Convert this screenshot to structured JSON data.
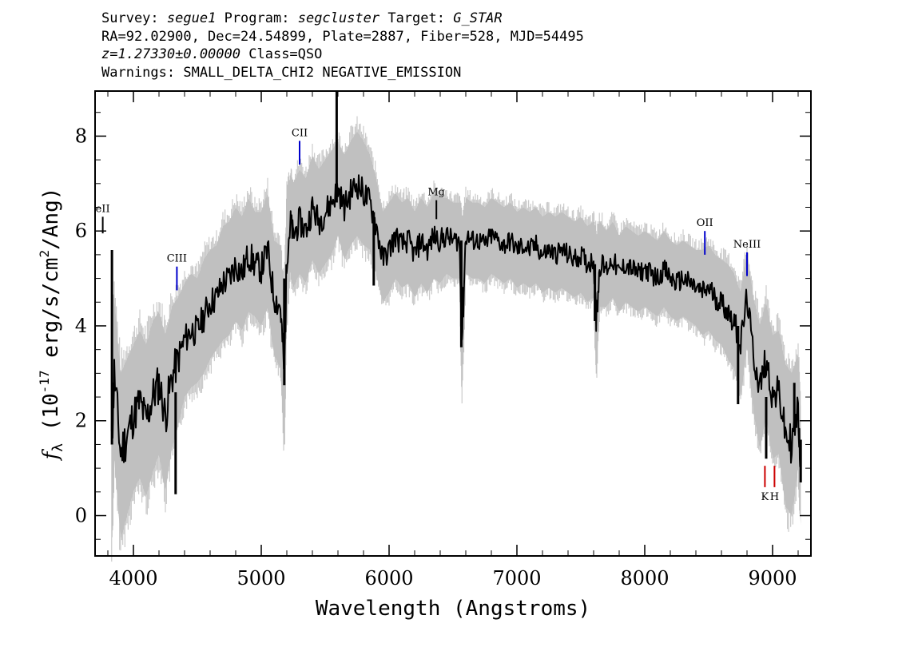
{
  "header": {
    "survey_label": "Survey:",
    "survey": "segue1",
    "program_label": "Program:",
    "program": "segcluster",
    "target_label": "Target:",
    "target": "G_STAR",
    "line2": "RA=92.02900, Dec=24.54899, Plate=2887, Fiber=528, MJD=54495",
    "redshift": "z=1.27330±0.00000",
    "class_text": "Class=QSO",
    "warnings": "Warnings: SMALL_DELTA_CHI2 NEGATIVE_EMISSION"
  },
  "chart_data": {
    "type": "line",
    "xlabel": "Wavelength (Angstroms)",
    "ylabel_prefix": "f",
    "ylabel_sub": "λ",
    "ylabel_unit": "(10",
    "ylabel_exp": "-17",
    "ylabel_rest": "erg/s/cm",
    "ylabel_exp2": "2",
    "ylabel_tail": "/Ang)",
    "xlim": [
      3700,
      9300
    ],
    "ylim": [
      -0.85,
      8.95
    ],
    "x_ticks": [
      4000,
      5000,
      6000,
      7000,
      8000,
      9000
    ],
    "y_ticks": [
      0,
      2,
      4,
      6,
      8
    ],
    "series": [
      {
        "role": "flux",
        "color": "#000000",
        "x": [
          3830,
          3850,
          3900,
          3950,
          4000,
          4050,
          4100,
          4150,
          4200,
          4250,
          4300,
          4350,
          4400,
          4450,
          4500,
          4550,
          4600,
          4650,
          4700,
          4750,
          4800,
          4850,
          4900,
          4950,
          5000,
          5050,
          5100,
          5150,
          5180,
          5200,
          5230,
          5250,
          5300,
          5350,
          5400,
          5450,
          5500,
          5550,
          5600,
          5650,
          5700,
          5750,
          5800,
          5850,
          5900,
          5950,
          6000,
          6050,
          6100,
          6150,
          6200,
          6250,
          6300,
          6350,
          6400,
          6450,
          6500,
          6550,
          6570,
          6600,
          6650,
          6700,
          6750,
          6800,
          6850,
          6900,
          6950,
          7000,
          7050,
          7100,
          7150,
          7200,
          7250,
          7300,
          7350,
          7400,
          7450,
          7500,
          7550,
          7600,
          7620,
          7650,
          7700,
          7750,
          7800,
          7850,
          7900,
          7950,
          8000,
          8050,
          8100,
          8150,
          8200,
          8250,
          8300,
          8350,
          8400,
          8450,
          8500,
          8550,
          8600,
          8650,
          8700,
          8750,
          8800,
          8850,
          8900,
          8950,
          9000,
          9050,
          9100,
          9150,
          9200,
          9220
        ],
        "y": [
          1.6,
          3.0,
          1.3,
          1.7,
          2.1,
          2.4,
          2.0,
          2.5,
          2.8,
          2.1,
          2.9,
          3.3,
          3.7,
          3.9,
          3.9,
          4.2,
          4.5,
          4.6,
          4.9,
          5.0,
          5.3,
          5.1,
          5.5,
          5.3,
          5.2,
          5.6,
          4.6,
          4.4,
          3.0,
          5.5,
          6.2,
          5.9,
          6.2,
          6.0,
          6.5,
          6.2,
          6.4,
          6.6,
          6.9,
          6.5,
          6.8,
          7.0,
          6.8,
          6.6,
          6.1,
          5.4,
          5.6,
          5.9,
          5.7,
          5.8,
          5.5,
          5.8,
          5.6,
          5.9,
          5.8,
          5.9,
          5.8,
          5.8,
          3.8,
          5.9,
          5.8,
          5.8,
          5.7,
          5.9,
          5.8,
          5.7,
          5.8,
          5.6,
          5.7,
          5.6,
          5.7,
          5.5,
          5.6,
          5.5,
          5.6,
          5.5,
          5.4,
          5.5,
          5.3,
          5.4,
          4.2,
          5.3,
          5.2,
          5.4,
          5.1,
          5.3,
          5.2,
          5.1,
          5.2,
          5.1,
          5.0,
          5.2,
          5.0,
          4.9,
          5.0,
          4.9,
          4.8,
          4.7,
          4.8,
          4.6,
          4.5,
          4.3,
          4.1,
          3.6,
          4.6,
          3.4,
          2.7,
          3.3,
          2.5,
          2.6,
          1.7,
          1.5,
          2.2,
          0.9
        ],
        "spikes": [
          {
            "x": 5590,
            "y": 8.95,
            "base": 6.6
          },
          {
            "x": 5180,
            "y": 2.75,
            "base": 5.0
          },
          {
            "x": 4330,
            "y": 0.45,
            "base": 2.6
          },
          {
            "x": 3832,
            "y": 5.6,
            "base": 1.5
          },
          {
            "x": 6565,
            "y": 3.55,
            "base": 5.8
          },
          {
            "x": 7610,
            "y": 4.1,
            "base": 5.3
          },
          {
            "x": 5880,
            "y": 4.85,
            "base": 6.4
          },
          {
            "x": 8730,
            "y": 2.35,
            "base": 4.0
          },
          {
            "x": 8950,
            "y": 1.2,
            "base": 2.5
          },
          {
            "x": 9170,
            "y": 2.8,
            "base": 1.8
          },
          {
            "x": 9220,
            "y": 0.7,
            "base": 1.6
          }
        ]
      },
      {
        "role": "error-envelope",
        "color": "#c0c0c0",
        "upper": [
          3.8,
          4.6,
          3.0,
          3.3,
          3.6,
          3.9,
          3.6,
          4.1,
          4.3,
          3.8,
          4.4,
          4.6,
          4.9,
          5.1,
          5.0,
          5.4,
          5.6,
          5.7,
          6.1,
          6.2,
          6.5,
          6.3,
          6.7,
          6.4,
          6.4,
          6.8,
          5.8,
          5.7,
          4.6,
          6.8,
          7.2,
          7.0,
          7.3,
          7.1,
          7.6,
          7.3,
          7.5,
          7.7,
          7.9,
          7.6,
          7.9,
          8.1,
          7.9,
          7.6,
          7.1,
          6.4,
          6.6,
          6.8,
          6.6,
          6.7,
          6.4,
          6.7,
          6.5,
          6.8,
          6.7,
          6.7,
          6.6,
          6.6,
          6.0,
          6.7,
          6.6,
          6.6,
          6.5,
          6.7,
          6.6,
          6.5,
          6.6,
          6.4,
          6.5,
          6.4,
          6.5,
          6.3,
          6.4,
          6.3,
          6.4,
          6.3,
          6.2,
          6.3,
          6.1,
          6.2,
          5.8,
          6.2,
          6.0,
          6.2,
          5.9,
          6.1,
          6.0,
          5.9,
          6.0,
          5.9,
          5.8,
          6.0,
          5.8,
          5.7,
          5.8,
          5.7,
          5.6,
          5.6,
          5.7,
          5.5,
          5.4,
          5.3,
          5.1,
          4.7,
          5.6,
          4.6,
          4.0,
          4.5,
          3.8,
          3.9,
          3.2,
          3.0,
          3.4,
          2.3
        ],
        "lower": [
          -0.6,
          1.2,
          -0.5,
          0.0,
          0.5,
          0.8,
          0.4,
          0.9,
          1.3,
          0.5,
          1.4,
          1.9,
          2.5,
          2.7,
          2.8,
          3.0,
          3.3,
          3.5,
          3.7,
          3.8,
          4.1,
          3.9,
          4.3,
          4.2,
          4.0,
          4.4,
          3.4,
          3.1,
          1.5,
          4.2,
          5.2,
          4.8,
          5.1,
          4.9,
          5.4,
          5.1,
          5.3,
          5.5,
          5.9,
          5.4,
          5.7,
          5.9,
          5.7,
          5.6,
          5.1,
          4.5,
          4.7,
          5.0,
          4.8,
          4.9,
          4.6,
          4.9,
          4.7,
          5.0,
          4.9,
          5.1,
          5.0,
          5.0,
          2.5,
          5.1,
          5.0,
          5.0,
          4.9,
          5.1,
          5.0,
          4.9,
          5.0,
          4.8,
          4.9,
          4.8,
          4.9,
          4.7,
          4.8,
          4.7,
          4.8,
          4.7,
          4.6,
          4.7,
          4.5,
          4.6,
          3.0,
          4.4,
          4.4,
          4.6,
          4.3,
          4.5,
          4.4,
          4.3,
          4.4,
          4.3,
          4.2,
          4.4,
          4.2,
          4.1,
          4.2,
          4.1,
          4.0,
          3.8,
          3.9,
          3.7,
          3.6,
          3.3,
          3.1,
          2.5,
          3.6,
          2.2,
          1.4,
          2.1,
          1.2,
          1.3,
          0.2,
          0.0,
          1.0,
          -0.2
        ]
      }
    ],
    "line_markers": [
      {
        "label": "eII",
        "x": 3760,
        "y_top": 6.3,
        "y_bottom": 5.95,
        "color": "#000000"
      },
      {
        "label": "CIII",
        "x": 4340,
        "y_top": 5.25,
        "y_bottom": 4.75,
        "color": "#0000cc"
      },
      {
        "label": "CII",
        "x": 5300,
        "y_top": 7.9,
        "y_bottom": 7.4,
        "color": "#0000cc"
      },
      {
        "label": "Mg",
        "x": 6370,
        "y_top": 6.65,
        "y_bottom": 6.25,
        "color": "#000000"
      },
      {
        "label": "OII",
        "x": 8470,
        "y_top": 6.0,
        "y_bottom": 5.5,
        "color": "#0000cc"
      },
      {
        "label": "NeIII",
        "x": 8800,
        "y_top": 5.55,
        "y_bottom": 5.05,
        "color": "#0000cc"
      },
      {
        "label": "K",
        "x": 8940,
        "y_top": 1.05,
        "y_bottom": 0.6,
        "color": "#cc0000"
      },
      {
        "label": "H",
        "x": 9015,
        "y_top": 1.05,
        "y_bottom": 0.6,
        "color": "#cc0000"
      }
    ]
  }
}
